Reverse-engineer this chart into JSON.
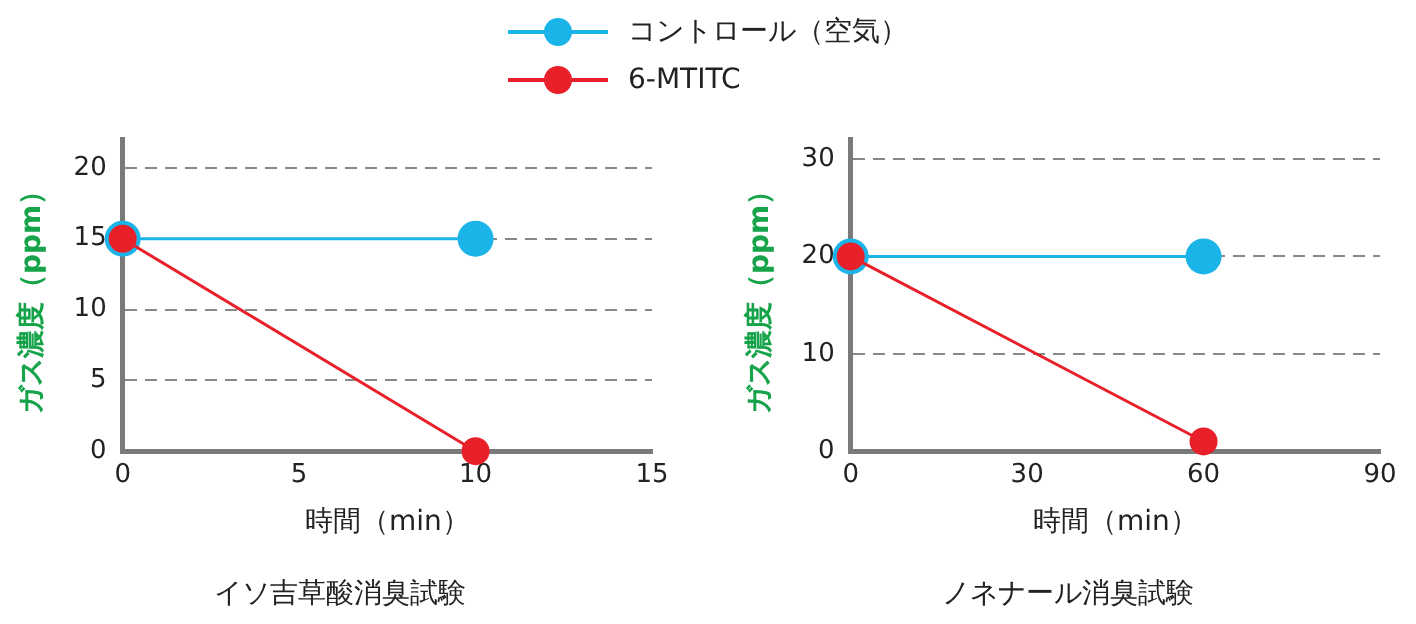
{
  "chart_data": [
    {
      "type": "line",
      "title": "イソ吉草酸消臭試験",
      "xlabel": "時間（min）",
      "ylabel": "ガス濃度（ppm）",
      "x": [
        0,
        10
      ],
      "xlim": [
        0,
        15
      ],
      "xticks": [
        0,
        5,
        10,
        15
      ],
      "ylim": [
        0,
        22
      ],
      "yticks": [
        0,
        5,
        10,
        15,
        20
      ],
      "grid": "y",
      "legend": "top",
      "marker": "circle",
      "line_style": "solid",
      "series": [
        {
          "name": "コントロール（空気）",
          "color": "#1ab4e8",
          "values": [
            15,
            15
          ]
        },
        {
          "name": "6-MTITC",
          "color": "#e8202a",
          "values": [
            15,
            0
          ]
        }
      ]
    },
    {
      "type": "line",
      "title": "ノネナール消臭試験",
      "xlabel": "時間（min）",
      "ylabel": "ガス濃度（ppm）",
      "x": [
        0,
        60
      ],
      "xlim": [
        0,
        90
      ],
      "xticks": [
        0,
        30,
        60,
        90
      ],
      "ylim": [
        0,
        32
      ],
      "yticks": [
        0,
        10,
        20,
        30
      ],
      "grid": "y",
      "marker": "circle",
      "line_style": "solid",
      "series": [
        {
          "color": "#1ab4e8",
          "values": [
            20,
            20
          ]
        },
        {
          "color": "#e8202a",
          "values": [
            20,
            1
          ]
        }
      ]
    }
  ]
}
